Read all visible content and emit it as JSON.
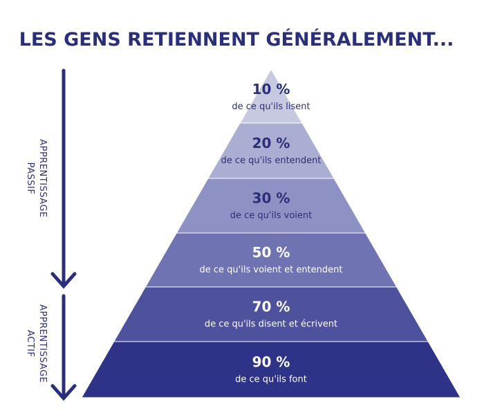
{
  "header": {
    "title": "LES GENS RETIENNENT GÉNÉRALEMENT..."
  },
  "side_labels": [
    {
      "lines": [
        "APPRENTISSAGE",
        "PASSIF"
      ]
    },
    {
      "lines": [
        "APPRENTISSAGE",
        "ACTIF"
      ]
    }
  ],
  "levels": [
    {
      "percent": "10 %",
      "text": "de ce qu'ils lisent"
    },
    {
      "percent": "20 %",
      "text": "de ce qu'ils entendent"
    },
    {
      "percent": "30 %",
      "text": "de ce qu'ils voient"
    },
    {
      "percent": "50 %",
      "text": "de ce qu'ils voient et entendent"
    },
    {
      "percent": "70 %",
      "text": "de ce qu'ils disent et écrivent"
    },
    {
      "percent": "90 %",
      "text": "de ce qu'ils font"
    }
  ]
}
